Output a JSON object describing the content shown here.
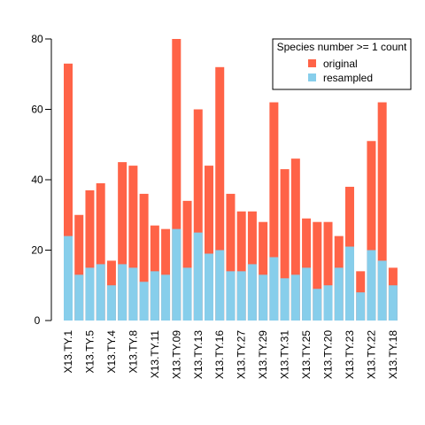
{
  "chart_data": {
    "type": "bar",
    "categories": [
      "X13.TY.1",
      null,
      "X13.TY.5",
      null,
      "X13.TY.4",
      null,
      "X13.TY.8",
      null,
      "X13.TY.11",
      null,
      "X13.TY.09",
      null,
      "X13.TY.13",
      null,
      "X13.TY.16",
      null,
      "X13.TY.27",
      null,
      "X13.TY.29",
      null,
      "X13.TY.31",
      null,
      "X13.TY.25",
      null,
      "X13.TY.20",
      null,
      "X13.TY.23",
      null,
      "X13.TY.22",
      null,
      "X13.TY.18"
    ],
    "series": [
      {
        "name": "original",
        "color": "#ff6347",
        "values": [
          73,
          30,
          37,
          39,
          17,
          45,
          44,
          36,
          27,
          26,
          80,
          34,
          60,
          44,
          72,
          36,
          31,
          31,
          28,
          62,
          43,
          46,
          29,
          28,
          28,
          24,
          38,
          14,
          51,
          62,
          15
        ]
      },
      {
        "name": "resampled",
        "color": "#87ceeb",
        "values": [
          24,
          13,
          15,
          16,
          10,
          16,
          15,
          11,
          14,
          13,
          26,
          15,
          25,
          19,
          20,
          14,
          14,
          16,
          13,
          18,
          12,
          13,
          15,
          9,
          10,
          15,
          21,
          8,
          20,
          17,
          10
        ]
      }
    ],
    "legend_title": "Species number >= 1 count",
    "legend": "topright",
    "ylim": [
      0,
      80
    ],
    "yticks": [
      0,
      20,
      40,
      60,
      80
    ]
  }
}
